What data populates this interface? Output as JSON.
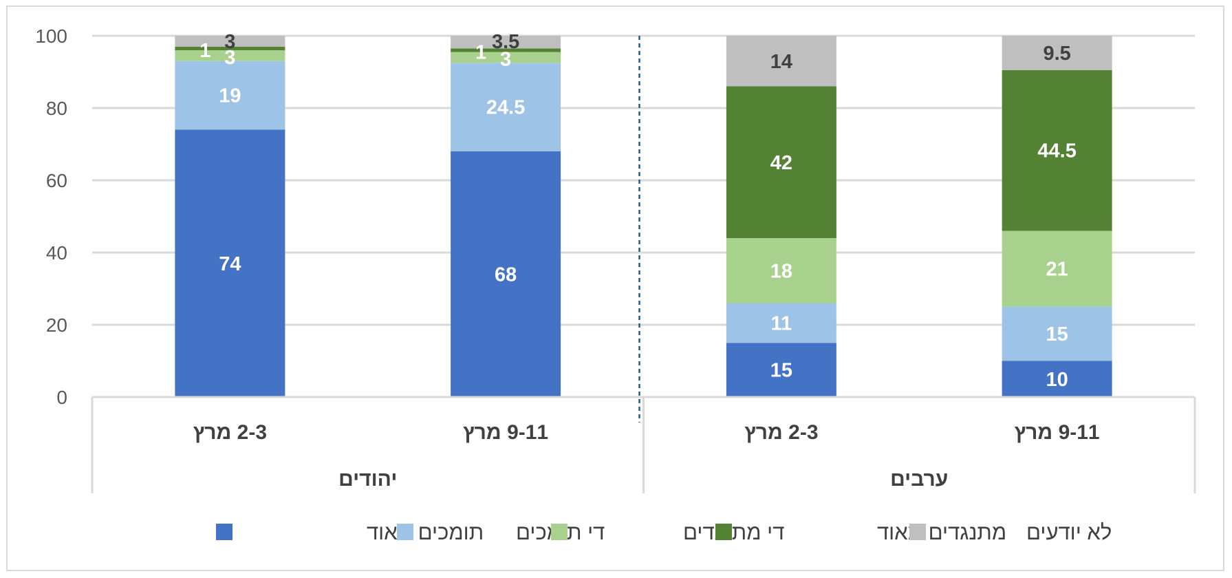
{
  "chart_data": {
    "type": "bar",
    "stacked": true,
    "ylim": [
      0,
      100
    ],
    "yticks": [
      0,
      20,
      40,
      60,
      80,
      100
    ],
    "groups": [
      {
        "label": "יהודים",
        "categories": [
          "2-3 מרץ",
          "9-11 מרץ"
        ]
      },
      {
        "label": "ערבים",
        "categories": [
          "2-3 מרץ",
          "9-11 מרץ"
        ]
      }
    ],
    "categories": [
      "2-3 מרץ",
      "9-11 מרץ",
      "2-3 מרץ",
      "9-11 מרץ"
    ],
    "series": [
      {
        "name": "תומכים מאוד",
        "color": "#4472c4",
        "label_color": "#ffffff",
        "values": [
          74,
          68,
          15,
          10
        ],
        "labels": [
          "74",
          "68",
          "15",
          "10"
        ]
      },
      {
        "name": "די תומכים",
        "color": "#9dc3e6",
        "label_color": "#ffffff",
        "values": [
          19,
          24.5,
          11,
          15
        ],
        "labels": [
          "19",
          "24.5",
          "11",
          "15"
        ]
      },
      {
        "name": "די מתנגדים",
        "color": "#a9d18e",
        "label_color": "#ffffff",
        "values": [
          3,
          3,
          18,
          21
        ],
        "labels": [
          "3",
          "3",
          "18",
          "21"
        ]
      },
      {
        "name": "מתנגדים מאוד",
        "color": "#548235",
        "label_color": "#ffffff",
        "values": [
          1,
          1,
          42,
          44.5
        ],
        "labels": [
          "1",
          "1",
          "42",
          "44.5"
        ]
      },
      {
        "name": "לא יודעים",
        "color": "#bfbfbf",
        "label_color": "#404040",
        "values": [
          3,
          3.5,
          14,
          9.5
        ],
        "labels": [
          "3",
          "3.5",
          "14",
          "9.5"
        ]
      }
    ],
    "legend_position": "bottom",
    "gridlines": true
  }
}
